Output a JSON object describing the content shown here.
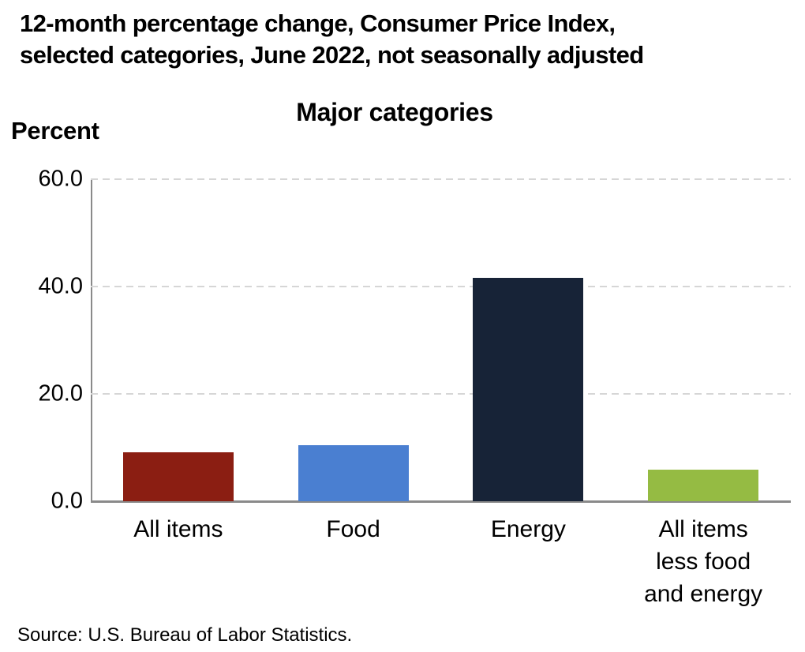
{
  "header": {
    "title_line1": "12-month percentage change, Consumer Price Index,",
    "title_line2": "selected categories, June 2022, not seasonally adjusted"
  },
  "chart_data": {
    "type": "bar",
    "title": "Major categories",
    "ylabel": "Percent",
    "xlabel": "",
    "categories": [
      "All items",
      "Food",
      "Energy",
      "All items less food and energy"
    ],
    "category_label_lines": [
      [
        "All items"
      ],
      [
        "Food"
      ],
      [
        "Energy"
      ],
      [
        "All items",
        "less food",
        "and energy"
      ]
    ],
    "values": [
      9.1,
      10.4,
      41.6,
      5.9
    ],
    "bar_colors": [
      "#8b1e12",
      "#4a7fd1",
      "#172337",
      "#95bb43"
    ],
    "ylim": [
      0,
      60
    ],
    "yticks": [
      0,
      20,
      40,
      60
    ],
    "ytick_labels": [
      "0.0",
      "20.0",
      "40.0",
      "60.0"
    ],
    "grid": "horizontal-dashed",
    "gridline_color": "#d6d6d6",
    "axis_color": "#8a8a8a",
    "legend": "none"
  },
  "footer": {
    "source": "Source: U.S. Bureau of Labor Statistics."
  }
}
